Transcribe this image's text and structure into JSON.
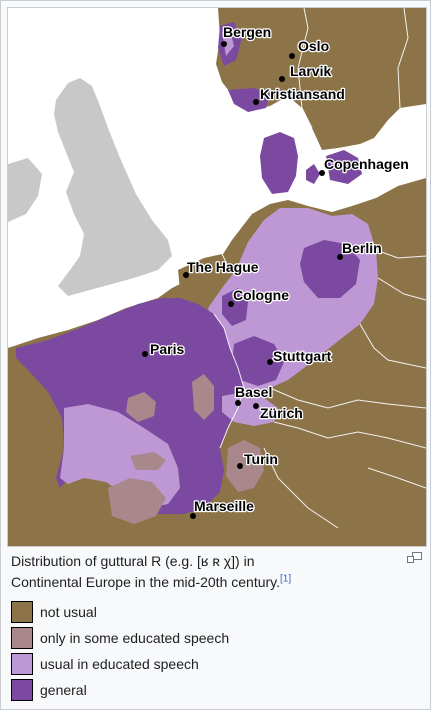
{
  "colors": {
    "not_usual": "#8c7448",
    "only_some_educated": "#a9888b",
    "usual_educated": "#bd98d4",
    "general": "#7b4aa0",
    "sea": "#ffffff",
    "britain": "#c8c8c8"
  },
  "cities": [
    {
      "name": "Bergen"
    },
    {
      "name": "Oslo"
    },
    {
      "name": "Larvik"
    },
    {
      "name": "Kristiansand"
    },
    {
      "name": "Copenhagen"
    },
    {
      "name": "Berlin"
    },
    {
      "name": "The Hague"
    },
    {
      "name": "Cologne"
    },
    {
      "name": "Paris"
    },
    {
      "name": "Stuttgart"
    },
    {
      "name": "Basel"
    },
    {
      "name": "Zürich"
    },
    {
      "name": "Turin"
    },
    {
      "name": "Marseille"
    }
  ],
  "caption": {
    "line1": "Distribution of guttural R (e.g. [ʁ ʀ χ]) in",
    "line2": "Continental Europe in the mid-20th century.",
    "ref": "[1]"
  },
  "legend": [
    {
      "label": "not usual",
      "color": "#8c7448"
    },
    {
      "label": "only in some educated speech",
      "color": "#a9888b"
    },
    {
      "label": "usual in educated speech",
      "color": "#bd98d4"
    },
    {
      "label": "general",
      "color": "#7b4aa0"
    }
  ]
}
